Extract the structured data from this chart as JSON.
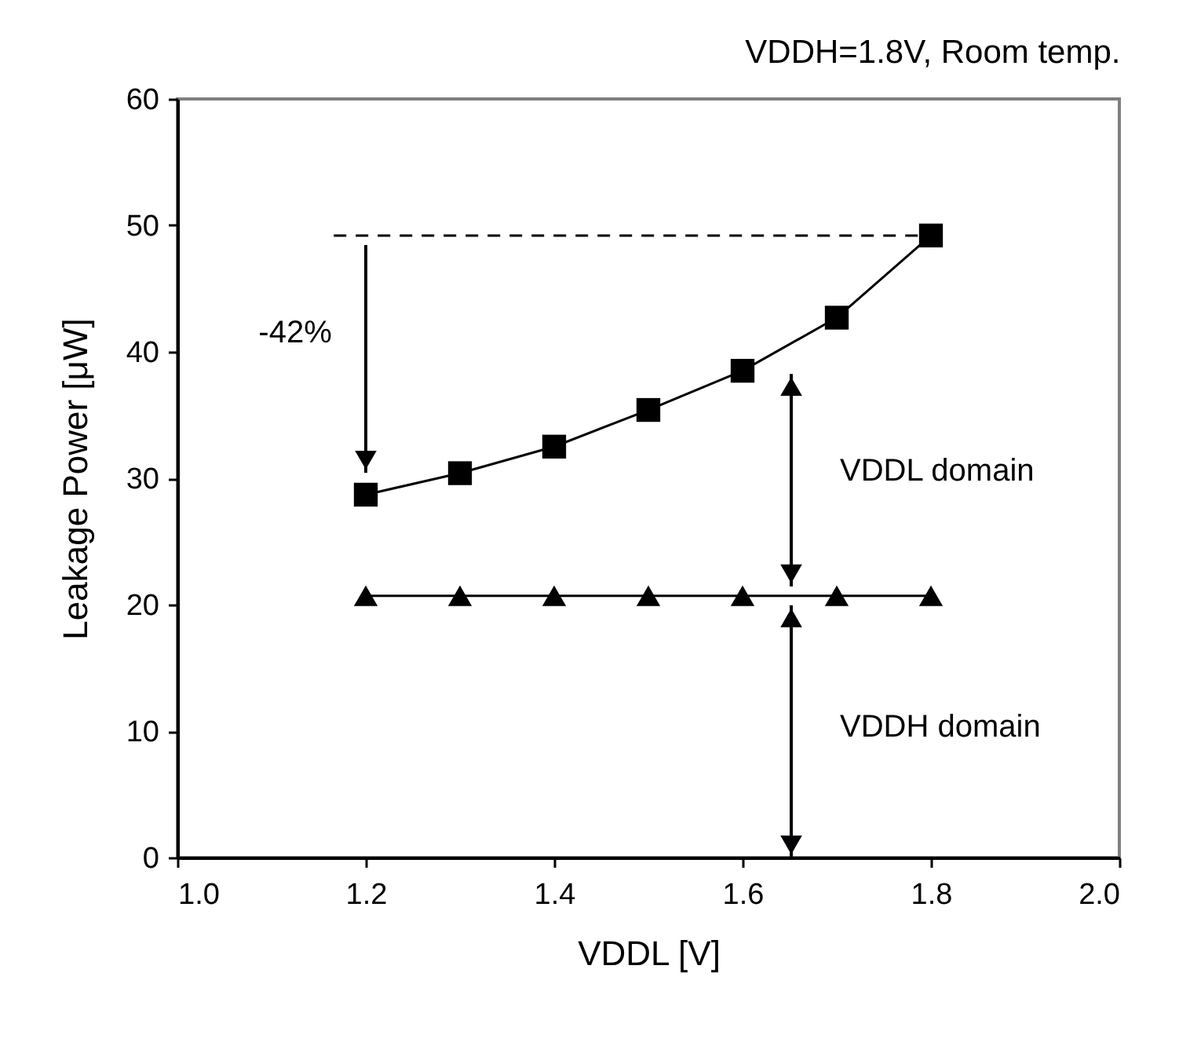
{
  "chart_data": {
    "type": "line",
    "title": "VDDH=1.8V, Room temp.",
    "xlabel": "VDDL [V]",
    "ylabel": "Leakage Power [μW]",
    "x": [
      1.2,
      1.3,
      1.4,
      1.5,
      1.6,
      1.7,
      1.8
    ],
    "series": [
      {
        "color": "#000000",
        "marker": "square",
        "line_style": "solid",
        "values": [
          28.7,
          30.4,
          32.5,
          35.4,
          38.5,
          42.7,
          49.2
        ]
      },
      {
        "color": "#000000",
        "marker": "triangle",
        "line_style": "solid",
        "values": [
          20.7,
          20.7,
          20.7,
          20.7,
          20.7,
          20.7,
          20.7
        ]
      },
      {
        "color": "#000000",
        "marker": "none",
        "line_style": "dashed",
        "x": [
          1.166,
          1.8
        ],
        "values": [
          49.2,
          49.2
        ]
      }
    ],
    "xlim": [
      1.0,
      2.0
    ],
    "xticks": [
      {
        "value": 1.0,
        "label": "1.0"
      },
      {
        "value": 1.2,
        "label": "1.2"
      },
      {
        "value": 1.4,
        "label": "1.4"
      },
      {
        "value": 1.6,
        "label": "1.6"
      },
      {
        "value": 1.8,
        "label": "1.8"
      },
      {
        "value": 2.0,
        "label": "2.0"
      }
    ],
    "ylim": [
      0,
      60
    ],
    "yticks": [
      0,
      10,
      20,
      30,
      40,
      50,
      60
    ],
    "grid": false,
    "annotations": [
      "-42%",
      "VDDL domain",
      "VDDH domain"
    ]
  }
}
